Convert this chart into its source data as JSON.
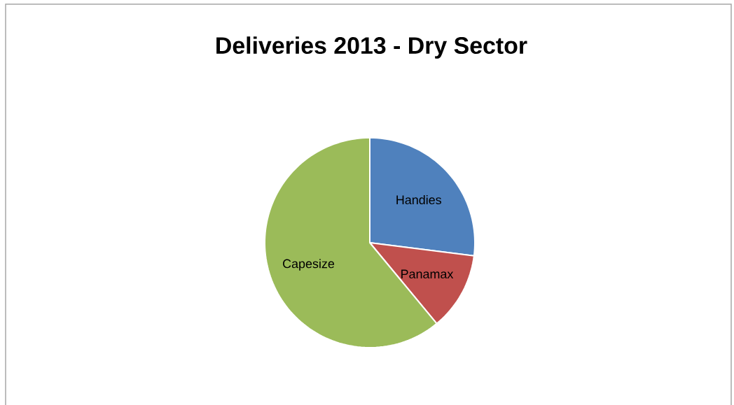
{
  "chart_data": {
    "type": "pie",
    "title": "Deliveries 2013 - Dry Sector",
    "categories": [
      "Handies",
      "Panamax",
      "Capesize"
    ],
    "values": [
      27,
      12,
      61
    ],
    "colors": [
      "#4f81bd",
      "#c0504d",
      "#9bbb59"
    ]
  }
}
